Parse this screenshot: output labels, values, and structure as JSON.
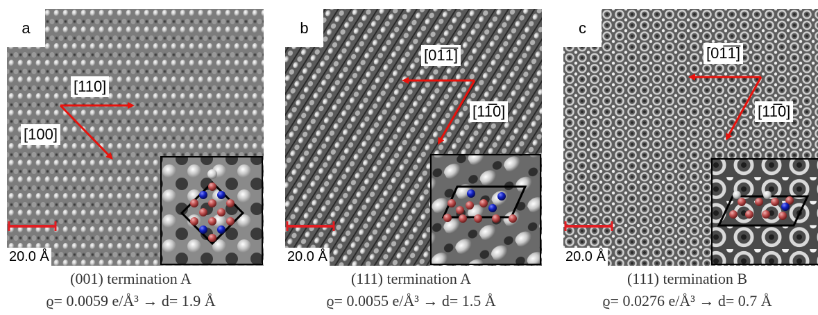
{
  "panels": [
    {
      "letter": "a",
      "scale": "20.0 Å",
      "directions": [
        "[110]",
        "[100]"
      ],
      "caption_line1": "(001) termination A",
      "caption_line2": "ϱ= 0.0059 e/Å³ → d= 1.9 Å"
    },
    {
      "letter": "b",
      "scale": "20.0 Å",
      "directions": [
        "[01̅1̅]",
        "[11̅0]"
      ],
      "caption_line1": "(111) termination A",
      "caption_line2": "ϱ= 0.0055 e/Å³ → d= 1.5 Å"
    },
    {
      "letter": "c",
      "scale": "20.0 Å",
      "directions": [
        "[01̅1̅]",
        "[11̅0]"
      ],
      "caption_line1": "(111) termination B",
      "caption_line2": "ϱ= 0.0276 e/Å³ → d= 0.7 Å"
    }
  ],
  "colors": {
    "arrow": "#e8120c",
    "scale_bar": "#e11d22",
    "atom_red": "#c05050",
    "atom_blue": "#1020c0",
    "atom_white": "#dddddd"
  }
}
